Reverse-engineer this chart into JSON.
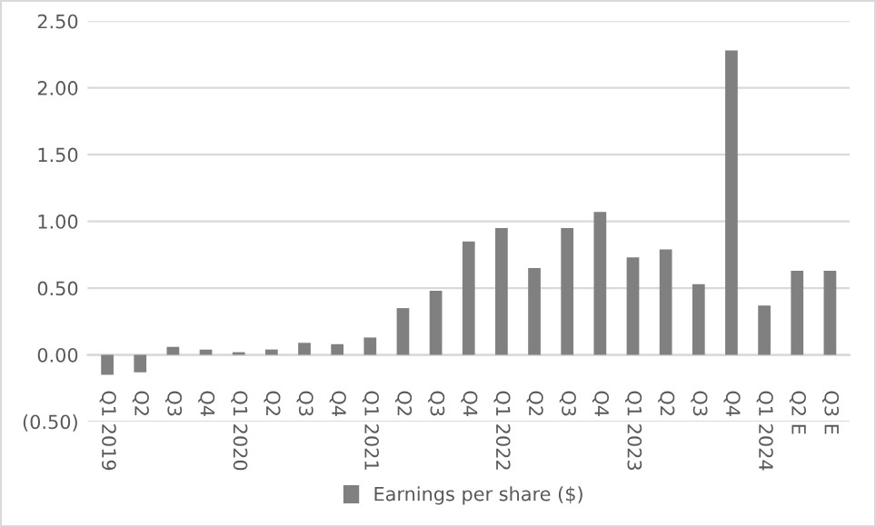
{
  "chart_data": {
    "type": "bar",
    "categories": [
      "Q1 2019",
      "Q2",
      "Q3",
      "Q4",
      "Q1 2020",
      "Q2",
      "Q3",
      "Q4",
      "Q1 2021",
      "Q2",
      "Q3",
      "Q4",
      "Q1 2022",
      "Q2",
      "Q3",
      "Q4",
      "Q1 2023",
      "Q2",
      "Q3",
      "Q4",
      "Q1 2024",
      "Q2 E",
      "Q3 E"
    ],
    "series": [
      {
        "name": "Earnings per share ($)",
        "color": "#808080",
        "values": [
          -0.15,
          -0.13,
          0.06,
          0.04,
          0.02,
          0.04,
          0.09,
          0.08,
          0.13,
          0.35,
          0.48,
          0.85,
          0.95,
          0.65,
          0.95,
          1.07,
          0.73,
          0.79,
          0.53,
          2.28,
          0.37,
          0.63,
          0.63
        ]
      }
    ],
    "ylim": [
      -0.5,
      2.5
    ],
    "yticks": [
      {
        "value": -0.5,
        "label": "(0.50)"
      },
      {
        "value": 0,
        "label": "0.00"
      },
      {
        "value": 0.5,
        "label": "0.50"
      },
      {
        "value": 1,
        "label": "1.00"
      },
      {
        "value": 1.5,
        "label": "1.50"
      },
      {
        "value": 2,
        "label": "2.00"
      },
      {
        "value": 2.5,
        "label": "2.50"
      }
    ],
    "grid": "y",
    "legend": "bottom"
  }
}
